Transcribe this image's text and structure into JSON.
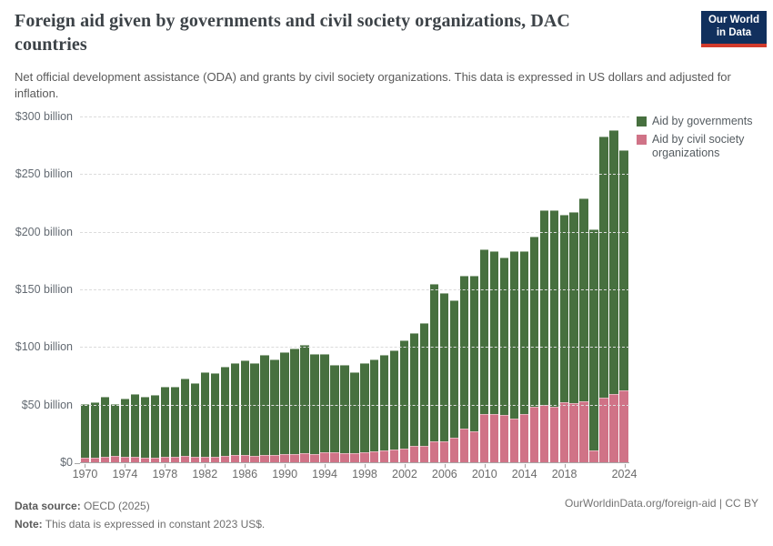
{
  "header": {
    "title": "Foreign aid given by governments and civil society organizations, DAC countries",
    "title_lines": [
      "Foreign aid given by governments and civil society organizations, DAC",
      "countries"
    ],
    "subtitle": "Net official development assistance (ODA) and grants by civil society organizations. This data is expressed in US dollars and adjusted for inflation.",
    "logo": {
      "line1": "Our World",
      "line2": "in Data",
      "bg_color": "#11305d",
      "strip_color": "#d23b2c"
    }
  },
  "legend": {
    "items": [
      {
        "label": "Aid by governments",
        "color": "#47703f"
      },
      {
        "label": "Aid by civil society organizations",
        "color": "#d07387"
      }
    ]
  },
  "chart_data": {
    "type": "bar",
    "stacked": true,
    "title": "Foreign aid given by governments and civil society organizations, DAC countries",
    "ylabel": "US dollars (constant 2023 US$)",
    "ylim": [
      0,
      300
    ],
    "ytick_values": [
      0,
      50,
      100,
      150,
      200,
      250,
      300
    ],
    "ytick_labels": [
      "$0",
      "$50 billion",
      "$100 billion",
      "$150 billion",
      "$200 billion",
      "$250 billion",
      "$300 billion"
    ],
    "xtick_labels": [
      1970,
      1974,
      1978,
      1982,
      1986,
      1990,
      1994,
      1998,
      2002,
      2006,
      2010,
      2014,
      2018,
      2024
    ],
    "grid": "horizontal-dashed",
    "legend_position": "right-top",
    "unit": "billion US$",
    "categories": [
      1970,
      1971,
      1972,
      1973,
      1974,
      1975,
      1976,
      1977,
      1978,
      1979,
      1980,
      1981,
      1982,
      1983,
      1984,
      1985,
      1986,
      1987,
      1988,
      1989,
      1990,
      1991,
      1992,
      1993,
      1994,
      1995,
      1996,
      1997,
      1998,
      1999,
      2000,
      2001,
      2002,
      2003,
      2004,
      2005,
      2006,
      2007,
      2008,
      2009,
      2010,
      2011,
      2012,
      2013,
      2014,
      2015,
      2016,
      2017,
      2018,
      2019,
      2020,
      2021,
      2022,
      2023,
      2024
    ],
    "series": [
      {
        "name": "Aid by civil society organizations",
        "color": "#d07387",
        "stack_order": "bottom",
        "values": [
          4,
          4,
          5,
          5.5,
          4.5,
          4.5,
          4,
          4,
          4.5,
          4.5,
          5.5,
          5,
          5,
          4.5,
          5.5,
          6,
          6.5,
          5.5,
          6,
          6.5,
          7,
          7,
          8,
          7.5,
          9,
          8.5,
          8,
          8,
          9,
          9.5,
          10,
          11,
          12,
          14,
          14,
          18,
          18,
          21,
          29,
          27,
          42,
          42,
          41,
          38,
          42,
          48,
          50,
          48,
          52,
          51,
          53,
          10,
          56,
          59,
          62
        ]
      },
      {
        "name": "Aid by governments",
        "color": "#47703f",
        "stack_order": "top",
        "values": [
          46,
          47,
          51,
          44,
          50,
          54,
          52,
          54,
          60,
          60,
          66,
          63,
          72,
          72,
          77,
          79,
          81,
          80,
          86,
          82,
          88,
          91,
          93,
          86,
          84,
          75,
          76,
          69,
          76,
          79,
          82,
          85,
          93,
          97,
          106,
          136,
          128,
          119,
          132,
          134,
          142,
          140,
          136,
          144,
          140,
          147,
          168,
          170,
          162,
          165,
          175,
          191,
          226,
          228,
          208
        ]
      }
    ]
  },
  "footer": {
    "sources_label": "Data source:",
    "sources_value": " OECD (2025)",
    "note_label": "Note:",
    "note_value": " This data is expressed in constant 2023 US$.",
    "right_text": "OurWorldinData.org/foreign-aid | CC BY"
  }
}
